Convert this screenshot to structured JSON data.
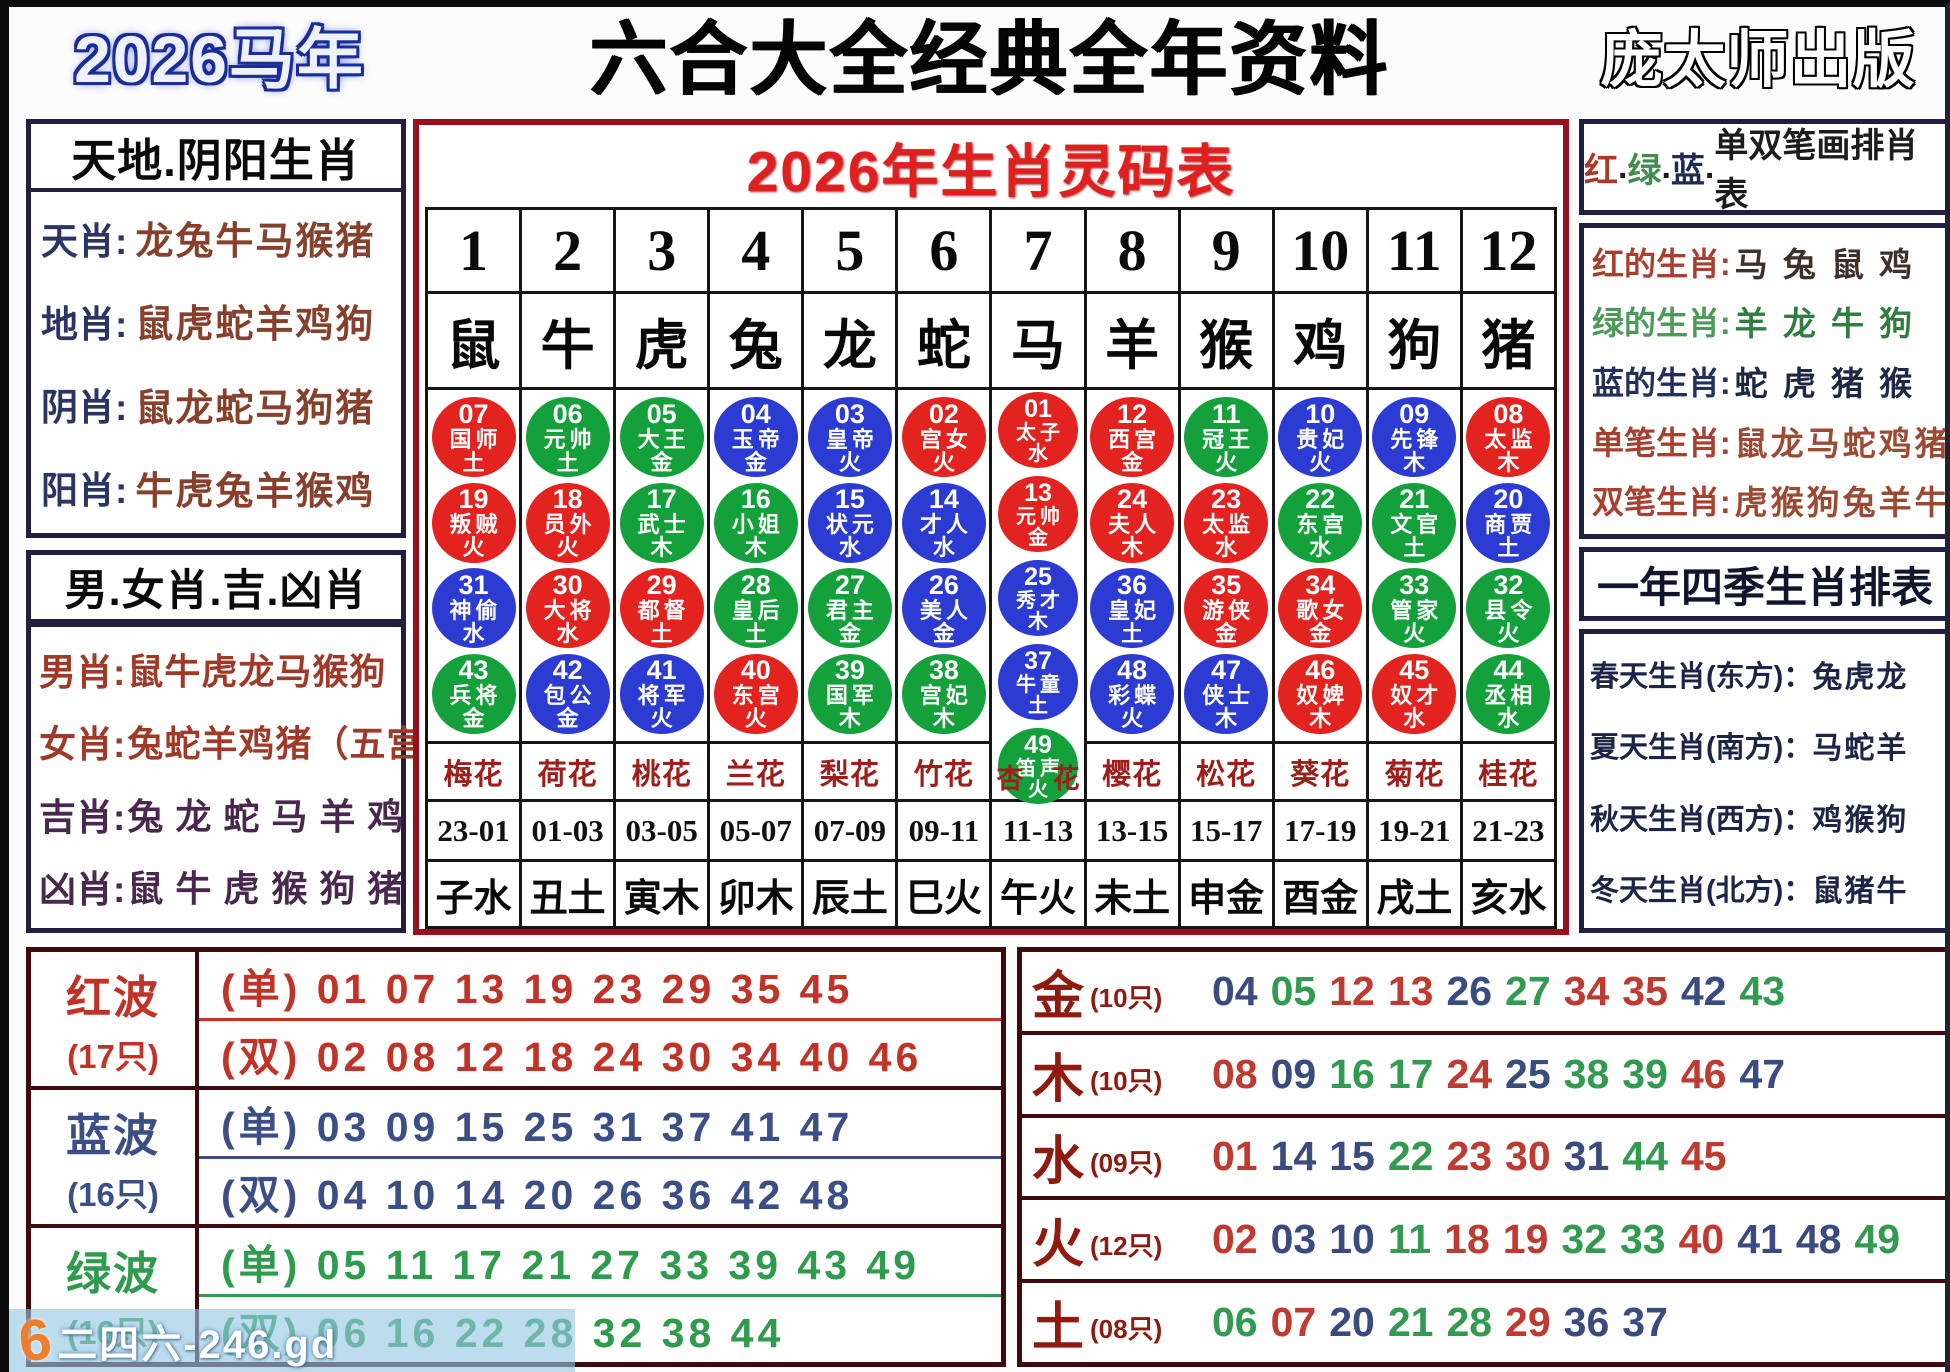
{
  "header": {
    "year_badge": "2026马年",
    "title": "六合大全经典全年资料",
    "publisher": "庞太师出版"
  },
  "left_panel": {
    "box1_title": "天地.阴阳生肖",
    "box1_rows": [
      {
        "label": "天肖:",
        "value": "龙兔牛马猴猪"
      },
      {
        "label": "地肖:",
        "value": "鼠虎蛇羊鸡狗"
      },
      {
        "label": "阴肖:",
        "value": "鼠龙蛇马狗猪"
      },
      {
        "label": "阳肖:",
        "value": "牛虎兔羊猴鸡"
      }
    ],
    "box2_title": "男.女肖.吉.凶肖",
    "box2_rows": [
      {
        "label": "男肖:",
        "value": "鼠牛虎龙马猴狗",
        "style": "red"
      },
      {
        "label": "女肖:",
        "value": "兔蛇羊鸡猪（五宫",
        "style": "red"
      },
      {
        "label": "吉肖:",
        "value": "兔 龙 蛇 马 羊 鸡",
        "style": "purple"
      },
      {
        "label": "凶肖:",
        "value": "鼠 牛 虎 猴 狗 猪",
        "style": "purple"
      }
    ]
  },
  "center_table": {
    "title": "2026年生肖灵码表",
    "ball_note": "ball format: [number, title, element, color r/g/b]",
    "columns": [
      {
        "num": "1",
        "animal": "鼠",
        "flower": "梅花",
        "time": "23-01",
        "branch": "子水",
        "balls": [
          [
            "07",
            "国师",
            "土",
            "r"
          ],
          [
            "19",
            "叛贼",
            "火",
            "r"
          ],
          [
            "31",
            "神偷",
            "水",
            "b"
          ],
          [
            "43",
            "兵将",
            "金",
            "g"
          ]
        ]
      },
      {
        "num": "2",
        "animal": "牛",
        "flower": "荷花",
        "time": "01-03",
        "branch": "丑土",
        "balls": [
          [
            "06",
            "元帅",
            "土",
            "g"
          ],
          [
            "18",
            "员外",
            "火",
            "r"
          ],
          [
            "30",
            "大将",
            "水",
            "r"
          ],
          [
            "42",
            "包公",
            "金",
            "b"
          ]
        ]
      },
      {
        "num": "3",
        "animal": "虎",
        "flower": "桃花",
        "time": "03-05",
        "branch": "寅木",
        "balls": [
          [
            "05",
            "大王",
            "金",
            "g"
          ],
          [
            "17",
            "武士",
            "木",
            "g"
          ],
          [
            "29",
            "都督",
            "土",
            "r"
          ],
          [
            "41",
            "将军",
            "火",
            "b"
          ]
        ]
      },
      {
        "num": "4",
        "animal": "兔",
        "flower": "兰花",
        "time": "05-07",
        "branch": "卯木",
        "balls": [
          [
            "04",
            "玉帝",
            "金",
            "b"
          ],
          [
            "16",
            "小姐",
            "木",
            "g"
          ],
          [
            "28",
            "皇后",
            "土",
            "g"
          ],
          [
            "40",
            "东宫",
            "火",
            "r"
          ]
        ]
      },
      {
        "num": "5",
        "animal": "龙",
        "flower": "梨花",
        "time": "07-09",
        "branch": "辰土",
        "balls": [
          [
            "03",
            "皇帝",
            "火",
            "b"
          ],
          [
            "15",
            "状元",
            "水",
            "b"
          ],
          [
            "27",
            "君主",
            "金",
            "g"
          ],
          [
            "39",
            "国军",
            "木",
            "g"
          ]
        ]
      },
      {
        "num": "6",
        "animal": "蛇",
        "flower": "竹花",
        "time": "09-11",
        "branch": "巳火",
        "balls": [
          [
            "02",
            "宫女",
            "火",
            "r"
          ],
          [
            "14",
            "才人",
            "水",
            "b"
          ],
          [
            "26",
            "美人",
            "金",
            "b"
          ],
          [
            "38",
            "宫妃",
            "木",
            "g"
          ]
        ]
      },
      {
        "num": "7",
        "animal": "马",
        "flower": "杏花",
        "time": "11-13",
        "branch": "午火",
        "balls": [
          [
            "01",
            "太子",
            "水",
            "r"
          ],
          [
            "13",
            "元帅",
            "金",
            "r"
          ],
          [
            "25",
            "秀才",
            "木",
            "b"
          ],
          [
            "37",
            "牛童",
            "土",
            "b"
          ],
          [
            "49",
            "笛声",
            "火",
            "g"
          ]
        ]
      },
      {
        "num": "8",
        "animal": "羊",
        "flower": "樱花",
        "time": "13-15",
        "branch": "未土",
        "balls": [
          [
            "12",
            "西宫",
            "金",
            "r"
          ],
          [
            "24",
            "夫人",
            "木",
            "r"
          ],
          [
            "36",
            "皇妃",
            "土",
            "b"
          ],
          [
            "48",
            "彩蝶",
            "火",
            "b"
          ]
        ]
      },
      {
        "num": "9",
        "animal": "猴",
        "flower": "松花",
        "time": "15-17",
        "branch": "申金",
        "balls": [
          [
            "11",
            "冠王",
            "火",
            "g"
          ],
          [
            "23",
            "太监",
            "水",
            "r"
          ],
          [
            "35",
            "游侠",
            "金",
            "r"
          ],
          [
            "47",
            "侠士",
            "木",
            "b"
          ]
        ]
      },
      {
        "num": "10",
        "animal": "鸡",
        "flower": "葵花",
        "time": "17-19",
        "branch": "酉金",
        "balls": [
          [
            "10",
            "贵妃",
            "火",
            "b"
          ],
          [
            "22",
            "东宫",
            "水",
            "g"
          ],
          [
            "34",
            "歌女",
            "金",
            "r"
          ],
          [
            "46",
            "奴婢",
            "木",
            "r"
          ]
        ]
      },
      {
        "num": "11",
        "animal": "狗",
        "flower": "菊花",
        "time": "19-21",
        "branch": "戌土",
        "balls": [
          [
            "09",
            "先锋",
            "木",
            "b"
          ],
          [
            "21",
            "文官",
            "土",
            "g"
          ],
          [
            "33",
            "管家",
            "火",
            "g"
          ],
          [
            "45",
            "奴才",
            "水",
            "r"
          ]
        ]
      },
      {
        "num": "12",
        "animal": "猪",
        "flower": "桂花",
        "time": "21-23",
        "branch": "亥水",
        "balls": [
          [
            "08",
            "太监",
            "木",
            "r"
          ],
          [
            "20",
            "商贾",
            "土",
            "b"
          ],
          [
            "32",
            "县令",
            "火",
            "g"
          ],
          [
            "44",
            "丞相",
            "水",
            "g"
          ]
        ]
      }
    ]
  },
  "right_panel": {
    "box1_title_segments": [
      {
        "text": "红",
        "color": "#a93a28"
      },
      {
        "text": ".",
        "color": "#1c1c1c"
      },
      {
        "text": "绿",
        "color": "#3e8d4c"
      },
      {
        "text": ".",
        "color": "#1c1c1c"
      },
      {
        "text": "蓝",
        "color": "#1d2a55"
      },
      {
        "text": ".",
        "color": "#1c1c1c"
      },
      {
        "text": "单双笔画排肖表",
        "color": "#1c1c1c"
      }
    ],
    "box1_rows": [
      {
        "label": "红的生肖:",
        "value": "马 兔 鼠 鸡",
        "label_color": "#a8402f",
        "value_color": "#40302a"
      },
      {
        "label": "绿的生肖:",
        "value": "羊 龙 牛 狗",
        "label_color": "#4c9a57",
        "value_color": "#2f7e3e"
      },
      {
        "label": "蓝的生肖:",
        "value": "蛇 虎 猪 猴",
        "label_color": "#23305c",
        "value_color": "#1f2746"
      },
      {
        "label": "单笔生肖:",
        "value": "鼠龙马蛇鸡猪",
        "label_color": "#a8402f",
        "value_color": "#9c4a33"
      },
      {
        "label": "双笔生肖:",
        "value": "虎猴狗兔羊牛",
        "label_color": "#a8402f",
        "value_color": "#9c4a33"
      }
    ],
    "box2_title": "一年四季生肖排表",
    "box2_rows": [
      {
        "label": "春天生肖(东方)：",
        "value": "兔虎龙"
      },
      {
        "label": "夏天生肖(南方)：",
        "value": "马蛇羊"
      },
      {
        "label": "秋天生肖(西方)：",
        "value": "鸡猴狗"
      },
      {
        "label": "冬天生肖(北方)：",
        "value": "鼠猪牛"
      }
    ]
  },
  "bottom_left": {
    "groups": [
      {
        "name": "红波",
        "count": "(17只)",
        "color": "#c13227",
        "rows": [
          "(单) 01 07 13 19 23 29 35 45",
          "(双) 02 08 12 18 24 30 34 40 46"
        ]
      },
      {
        "name": "蓝波",
        "count": "(16只)",
        "color": "#3c4e86",
        "rows": [
          "(单) 03 09 15 25 31 37 41 47",
          "(双) 04 10 14 20 26 36 42 48"
        ]
      },
      {
        "name": "绿波",
        "count": "(16只)",
        "color": "#2e9b4d",
        "rows": [
          "(单) 05 11 17 21 27 33 39 43 49",
          "(双) 06 16 22 28 32 38 44"
        ]
      }
    ]
  },
  "bottom_right": {
    "rows": [
      {
        "element": "金",
        "count": "(10只)",
        "numbers": [
          "04",
          "05",
          "12",
          "13",
          "26",
          "27",
          "34",
          "35",
          "42",
          "43"
        ]
      },
      {
        "element": "木",
        "count": "(10只)",
        "numbers": [
          "08",
          "09",
          "16",
          "17",
          "24",
          "25",
          "38",
          "39",
          "46",
          "47"
        ]
      },
      {
        "element": "水",
        "count": "(09只)",
        "numbers": [
          "01",
          "14",
          "15",
          "22",
          "23",
          "30",
          "31",
          "44",
          "45"
        ]
      },
      {
        "element": "火",
        "count": "(12只)",
        "numbers": [
          "02",
          "03",
          "10",
          "11",
          "18",
          "19",
          "32",
          "33",
          "40",
          "41",
          "48",
          "49"
        ]
      },
      {
        "element": "土",
        "count": "(08只)",
        "numbers": [
          "06",
          "07",
          "20",
          "21",
          "28",
          "29",
          "36",
          "37"
        ]
      }
    ]
  },
  "waves": {
    "red": [
      "01",
      "02",
      "07",
      "08",
      "12",
      "13",
      "18",
      "19",
      "23",
      "24",
      "29",
      "30",
      "34",
      "35",
      "40",
      "45",
      "46"
    ],
    "blue": [
      "03",
      "04",
      "09",
      "10",
      "14",
      "15",
      "20",
      "25",
      "26",
      "31",
      "36",
      "37",
      "41",
      "42",
      "47",
      "48"
    ],
    "green": [
      "05",
      "06",
      "11",
      "16",
      "17",
      "21",
      "22",
      "27",
      "28",
      "32",
      "33",
      "38",
      "39",
      "43",
      "44",
      "49"
    ]
  },
  "colors": {
    "ball_red": "#e2231f",
    "ball_green": "#14a03a",
    "ball_blue": "#2c3bd1",
    "wave_red": "#bf3a30",
    "wave_blue": "#3a4b80",
    "wave_green": "#339b51"
  },
  "watermark": {
    "logo": "6",
    "text": "二四六-246.gd"
  }
}
